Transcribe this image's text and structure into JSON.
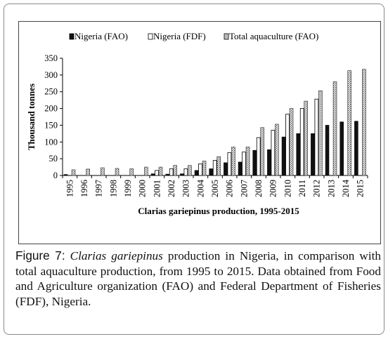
{
  "figure": {
    "caption_label": "Figure 7:",
    "caption_italic": "Clarias gariepinus",
    "caption_text": " production in Nigeria, in comparison with total aquaculture production, from 1995 to 2015. Data obtained from Food and Agriculture organization (FAO) and Federal Department of Fisheries (FDF), Nigeria."
  },
  "chart_data": {
    "type": "bar",
    "title": "",
    "xlabel": "Clarias gariepinus production,  1995-2015",
    "ylabel": "Thousand tonnes",
    "ylim": [
      0,
      350
    ],
    "yticks": [
      0,
      50,
      100,
      150,
      200,
      250,
      300,
      350
    ],
    "grid": false,
    "legend_position": "top",
    "categories": [
      "1995",
      "1996",
      "1997",
      "1998",
      "1999",
      "2000",
      "2001",
      "2002",
      "2003",
      "2004",
      "2005",
      "2006",
      "2007",
      "2008",
      "2009",
      "2010",
      "2011",
      "2012",
      "2013",
      "2014",
      "2015"
    ],
    "series": [
      {
        "name": "Nigeria (FAO)",
        "pattern": "solid-dark",
        "values": [
          3,
          null,
          null,
          null,
          null,
          null,
          5,
          4,
          5,
          15,
          20,
          38,
          40,
          75,
          77,
          115,
          125,
          125,
          150,
          160,
          162
        ]
      },
      {
        "name": "Nigeria (FDF)",
        "pattern": "hollow-white",
        "values": [
          null,
          null,
          null,
          null,
          null,
          null,
          15,
          20,
          20,
          35,
          45,
          68,
          70,
          113,
          135,
          183,
          200,
          228,
          null,
          null,
          null
        ]
      },
      {
        "name": "Total aquaculture (FAO)",
        "pattern": "stippled",
        "values": [
          17,
          19,
          23,
          21,
          20,
          25,
          25,
          30,
          30,
          43,
          56,
          85,
          85,
          143,
          153,
          200,
          222,
          253,
          280,
          313,
          317
        ]
      }
    ],
    "colors": {
      "axis": "#000000",
      "dark": "#111111",
      "hollow_stroke": "#000000",
      "stipple": "#555555"
    }
  }
}
